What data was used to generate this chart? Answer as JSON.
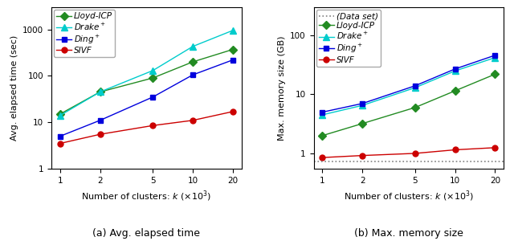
{
  "x": [
    1,
    2,
    5,
    10,
    20
  ],
  "left": {
    "ylabel": "Avg. elapsed time (sec)",
    "xlabel": "Number of clusters: $k$ ($\\times10^3$)",
    "caption": "(a) Avg. elapsed time",
    "ylim": [
      1,
      3000
    ],
    "yticks": [
      1,
      10,
      100,
      1000
    ],
    "series": [
      {
        "name": "Lloyd-ICP",
        "y": [
          15,
          45,
          90,
          200,
          370
        ],
        "color": "#228B22",
        "marker": "D",
        "markersize": 5
      },
      {
        "name": "$Drake^+$",
        "y": [
          14,
          45,
          130,
          430,
          950
        ],
        "color": "#00CCCC",
        "marker": "^",
        "markersize": 6
      },
      {
        "name": "$Ding^+$",
        "y": [
          5,
          11,
          35,
          105,
          220
        ],
        "color": "#0000DD",
        "marker": "s",
        "markersize": 5
      },
      {
        "name": "SIVF",
        "y": [
          3.5,
          5.5,
          8.5,
          11,
          17
        ],
        "color": "#CC0000",
        "marker": "o",
        "markersize": 5
      }
    ]
  },
  "right": {
    "ylabel": "Max. memory size (GB)",
    "xlabel": "Number of clusters: $k$ ($\\times10^3$)",
    "caption": "(b) Max. memory size",
    "ylim": [
      0.55,
      300
    ],
    "yticks": [
      1,
      10,
      100
    ],
    "dataset_line": 0.72,
    "series": [
      {
        "name": "Lloyd-ICP",
        "y": [
          2.0,
          3.2,
          6.0,
          11.5,
          22
        ],
        "color": "#228B22",
        "marker": "D",
        "markersize": 5
      },
      {
        "name": "$Drake^+$",
        "y": [
          4.5,
          6.5,
          13,
          25,
          42
        ],
        "color": "#00CCCC",
        "marker": "^",
        "markersize": 6
      },
      {
        "name": "$Ding^+$",
        "y": [
          5.0,
          7.0,
          14,
          27,
          46
        ],
        "color": "#0000DD",
        "marker": "s",
        "markersize": 5
      },
      {
        "name": "SIVF",
        "y": [
          0.85,
          0.92,
          1.0,
          1.15,
          1.25
        ],
        "color": "#CC0000",
        "marker": "o",
        "markersize": 5
      }
    ]
  },
  "legend_fontsize": 7.5,
  "axis_fontsize": 8,
  "tick_fontsize": 7.5,
  "caption_fontsize": 9,
  "background_color": "#ffffff"
}
